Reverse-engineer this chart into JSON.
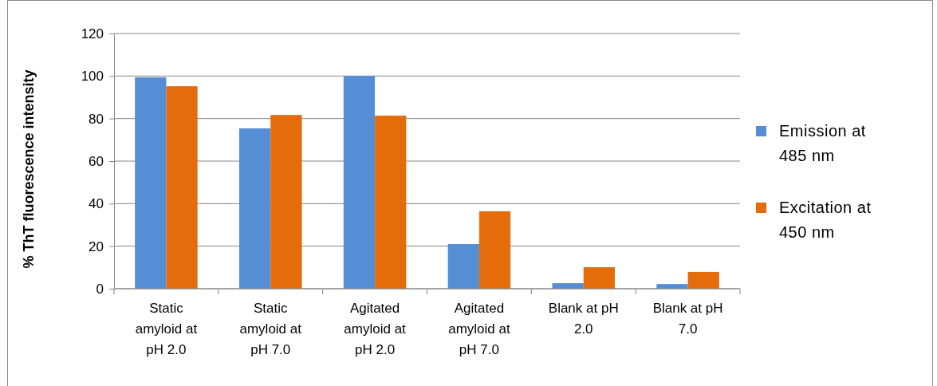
{
  "chart_data": {
    "type": "bar",
    "ylabel": "% ThT fluorescence intensity",
    "categories": [
      "Static amyloid at pH 2.0",
      "Static amyloid at pH 7.0",
      "Agitated amyloid at pH 2.0",
      "Agitated amyloid at pH 7.0",
      "Blank at pH 2.0",
      "Blank at pH 7.0"
    ],
    "series": [
      {
        "name": "Emission at 485 nm",
        "color": "#558ed5",
        "values": [
          99.4,
          75.4,
          100,
          21,
          2.6,
          2.2
        ]
      },
      {
        "name": "Excitation at 450 nm",
        "color": "#e46c0a",
        "values": [
          95.2,
          81.7,
          81.4,
          36.4,
          10.1,
          7.9
        ]
      }
    ],
    "ylim": [
      0,
      120
    ],
    "yticks": [
      0,
      20,
      40,
      60,
      80,
      100,
      120
    ],
    "grid": "y",
    "legend": "right"
  }
}
